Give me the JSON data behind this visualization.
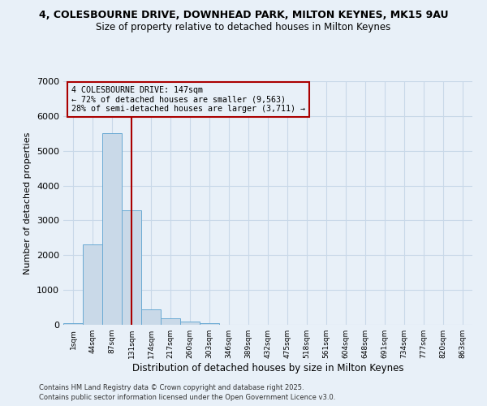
{
  "title1": "4, COLESBOURNE DRIVE, DOWNHEAD PARK, MILTON KEYNES, MK15 9AU",
  "title2": "Size of property relative to detached houses in Milton Keynes",
  "xlabel": "Distribution of detached houses by size in Milton Keynes",
  "ylabel": "Number of detached properties",
  "bar_labels": [
    "1sqm",
    "44sqm",
    "87sqm",
    "131sqm",
    "174sqm",
    "217sqm",
    "260sqm",
    "303sqm",
    "346sqm",
    "389sqm",
    "432sqm",
    "475sqm",
    "518sqm",
    "561sqm",
    "604sqm",
    "648sqm",
    "691sqm",
    "734sqm",
    "777sqm",
    "820sqm",
    "863sqm"
  ],
  "bar_values": [
    50,
    2300,
    5500,
    3300,
    450,
    190,
    100,
    50,
    0,
    0,
    0,
    0,
    0,
    0,
    0,
    0,
    0,
    0,
    0,
    0,
    0
  ],
  "bar_color": "#c9d9e8",
  "bar_edge_color": "#6aaad4",
  "grid_color": "#c8d8e8",
  "bg_color": "#e8f0f8",
  "vline_x": 3.0,
  "vline_color": "#aa0000",
  "annotation_text": "4 COLESBOURNE DRIVE: 147sqm\n← 72% of detached houses are smaller (9,563)\n28% of semi-detached houses are larger (3,711) →",
  "annotation_box_color": "#aa0000",
  "ylim": [
    0,
    7000
  ],
  "yticks": [
    0,
    1000,
    2000,
    3000,
    4000,
    5000,
    6000,
    7000
  ],
  "footer1": "Contains HM Land Registry data © Crown copyright and database right 2025.",
  "footer2": "Contains public sector information licensed under the Open Government Licence v3.0."
}
